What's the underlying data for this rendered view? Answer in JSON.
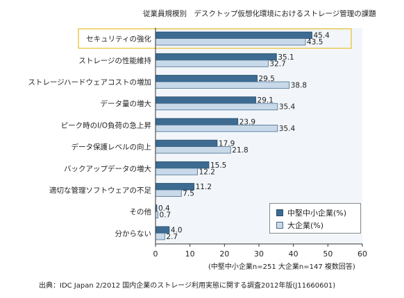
{
  "chart_data": {
    "type": "bar",
    "orientation": "horizontal",
    "title": "従業員規模別　デスクトップ仮想化環境におけるストレージ管理の課題",
    "categories": [
      "セキュリティの強化",
      "ストレージの性能維持",
      "ストレージハードウェアコストの増加",
      "データ量の増大",
      "ピーク時のI/O負荷の急上昇",
      "データ保護レベルの向上",
      "バックアップデータの増大",
      "適切な管理ソフトウェアの不足",
      "その他",
      "分からない"
    ],
    "series": [
      {
        "name": "中堅中小企業(%)",
        "values": [
          45.4,
          35.1,
          29.5,
          29.1,
          23.9,
          17.9,
          15.5,
          11.2,
          0.4,
          4.0
        ],
        "labels": [
          "45.4",
          "35.1",
          "29.5",
          "29.1",
          "23.9",
          "17.9",
          "15.5",
          "11.2",
          "0.4",
          "4.0"
        ],
        "color": "#3d6b91",
        "stroke": "#2a4f6e"
      },
      {
        "name": "大企業(%)",
        "values": [
          43.5,
          32.7,
          38.8,
          35.4,
          35.4,
          21.8,
          12.2,
          7.5,
          0.7,
          2.7
        ],
        "labels": [
          "43.5",
          "32.7",
          "38.8",
          "35.4",
          "35.4",
          "21.8",
          "12.2",
          "7.5",
          "0.7",
          "2.7"
        ],
        "color": "#c8d9e9",
        "stroke": "#4a6d8c"
      }
    ],
    "xlim": [
      0,
      60
    ],
    "xticks": [
      0,
      10,
      20,
      30,
      40,
      50,
      60
    ],
    "grid": false,
    "legend_position": "bottom-right",
    "highlight_category": "セキュリティの強化",
    "highlight_color": "#e8c33a"
  },
  "note": "(中堅中小企業n=251 大企業n=147 複数回答)",
  "source": "出典：IDC Japan 2/2012 国内企業のストレージ利用実態に関する調査2012年版(J11660601)"
}
